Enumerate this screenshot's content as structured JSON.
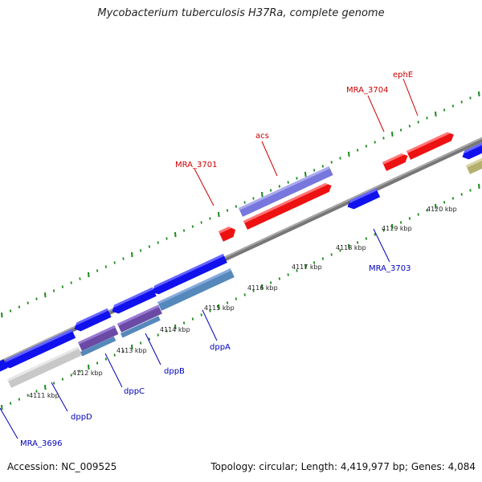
{
  "title": "Mycobacterium tuberculosis H37Ra, complete genome",
  "footer": {
    "accession": "Accession: NC_009525",
    "summary": "Topology: circular; Length: 4,419,977 bp; Genes: 4,084"
  },
  "colors": {
    "background": "#ffffff",
    "backbone": "#8a8a8a",
    "forward_gene": "#ee1111",
    "reverse_gene": "#1111ee",
    "forward_label": "#cc0000",
    "reverse_label": "#0000bb",
    "ticks": "#1a8a1a",
    "cds_lavender": "#7777dd",
    "cds_steel": "#5588bb",
    "cds_grey": "#c8c8c8",
    "cds_olive": "#b5b070"
  },
  "axis": {
    "ticks": [
      {
        "label": "4111 kbp"
      },
      {
        "label": "4112 kbp"
      },
      {
        "label": "4113 kbp"
      },
      {
        "label": "4114 kbp"
      },
      {
        "label": "4115 kbp"
      },
      {
        "label": "4116 kbp"
      },
      {
        "label": "4117 kbp"
      },
      {
        "label": "4118 kbp"
      },
      {
        "label": "4119 kbp"
      },
      {
        "label": "4120 kbp"
      }
    ]
  },
  "genes": {
    "forward": [
      {
        "label": "MRA_3701"
      },
      {
        "label": "acs"
      },
      {
        "label": "MRA_3704"
      },
      {
        "label": "ephE"
      }
    ],
    "reverse": [
      {
        "label": "MRA_3703"
      },
      {
        "label": "dppA"
      },
      {
        "label": "dppB"
      },
      {
        "label": "dppC"
      },
      {
        "label": "dppD"
      },
      {
        "label": "MRA_3696"
      }
    ]
  }
}
